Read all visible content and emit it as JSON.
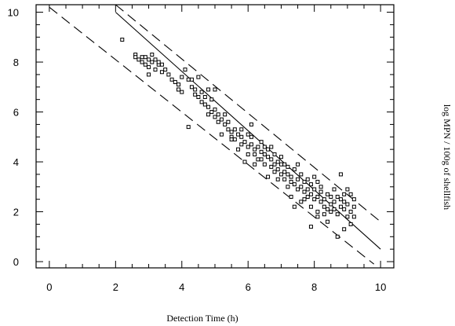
{
  "chart_data": {
    "type": "scatter",
    "title": "",
    "xlabel": "Detection Time (h)",
    "ylabel": "log MPN  /  100g of shellfish",
    "xlim": [
      -0.4,
      10.4
    ],
    "ylim": [
      -0.25,
      10.3
    ],
    "x_ticks": [
      0,
      2,
      4,
      6,
      8,
      10
    ],
    "y_ticks": [
      0,
      2,
      4,
      6,
      8,
      10
    ],
    "x_tick_labels": [
      "0",
      "2",
      "4",
      "6",
      "8",
      "10"
    ],
    "y_tick_labels": [
      "0",
      "2",
      "4",
      "6",
      "8",
      "10"
    ],
    "grid": false,
    "legend": "none",
    "lines": [
      {
        "style": "solid",
        "x": [
          2.0,
          10.0
        ],
        "y": [
          10.0,
          0.5
        ]
      },
      {
        "style": "dashed",
        "x": [
          2.0,
          10.0
        ],
        "y": [
          10.3,
          1.6
        ]
      },
      {
        "style": "dashed",
        "x": [
          0.0,
          9.8
        ],
        "y": [
          10.2,
          -0.1
        ]
      }
    ],
    "series": [
      {
        "points": [
          [
            2.2,
            8.9
          ],
          [
            2.6,
            8.3
          ],
          [
            2.6,
            8.2
          ],
          [
            2.7,
            8.1
          ],
          [
            2.8,
            8.0
          ],
          [
            2.9,
            8.2
          ],
          [
            2.9,
            7.9
          ],
          [
            3.0,
            7.8
          ],
          [
            3.0,
            8.1
          ],
          [
            3.1,
            8.3
          ],
          [
            3.1,
            8.0
          ],
          [
            3.2,
            7.7
          ],
          [
            3.2,
            8.1
          ],
          [
            3.3,
            7.9
          ],
          [
            3.4,
            7.6
          ],
          [
            3.5,
            7.7
          ],
          [
            3.6,
            7.5
          ],
          [
            3.7,
            7.3
          ],
          [
            3.8,
            7.2
          ],
          [
            3.9,
            7.1
          ],
          [
            3.9,
            6.9
          ],
          [
            4.0,
            7.4
          ],
          [
            4.0,
            6.8
          ],
          [
            4.1,
            7.7
          ],
          [
            4.2,
            7.3
          ],
          [
            4.3,
            7.3
          ],
          [
            4.3,
            7.0
          ],
          [
            4.4,
            6.9
          ],
          [
            4.4,
            6.7
          ],
          [
            4.5,
            6.6
          ],
          [
            4.6,
            6.4
          ],
          [
            4.7,
            6.3
          ],
          [
            4.7,
            6.6
          ],
          [
            4.8,
            6.9
          ],
          [
            4.8,
            6.2
          ],
          [
            4.9,
            6.0
          ],
          [
            4.9,
            6.5
          ],
          [
            5.0,
            5.8
          ],
          [
            5.0,
            6.1
          ],
          [
            5.1,
            5.9
          ],
          [
            5.1,
            5.6
          ],
          [
            5.2,
            5.7
          ],
          [
            5.3,
            5.5
          ],
          [
            5.3,
            5.9
          ],
          [
            5.4,
            5.3
          ],
          [
            5.4,
            5.6
          ],
          [
            5.5,
            5.2
          ],
          [
            5.5,
            5.0
          ],
          [
            5.6,
            5.3
          ],
          [
            5.6,
            4.9
          ],
          [
            5.7,
            5.1
          ],
          [
            5.8,
            5.0
          ],
          [
            5.8,
            4.7
          ],
          [
            5.9,
            4.8
          ],
          [
            6.0,
            5.1
          ],
          [
            6.0,
            4.6
          ],
          [
            6.1,
            4.7
          ],
          [
            6.1,
            5.0
          ],
          [
            6.2,
            4.5
          ],
          [
            6.2,
            4.3
          ],
          [
            6.3,
            4.6
          ],
          [
            6.4,
            4.4
          ],
          [
            6.4,
            4.1
          ],
          [
            6.5,
            4.3
          ],
          [
            6.5,
            3.9
          ],
          [
            6.6,
            4.2
          ],
          [
            6.6,
            4.5
          ],
          [
            6.7,
            3.8
          ],
          [
            6.7,
            4.1
          ],
          [
            6.8,
            3.9
          ],
          [
            6.8,
            3.6
          ],
          [
            6.9,
            4.0
          ],
          [
            6.9,
            3.7
          ],
          [
            7.0,
            3.5
          ],
          [
            7.0,
            3.9
          ],
          [
            7.1,
            3.6
          ],
          [
            7.1,
            3.3
          ],
          [
            7.2,
            3.5
          ],
          [
            7.2,
            3.8
          ],
          [
            7.3,
            3.2
          ],
          [
            7.3,
            3.4
          ],
          [
            7.4,
            3.1
          ],
          [
            7.4,
            3.7
          ],
          [
            7.5,
            3.3
          ],
          [
            7.5,
            2.9
          ],
          [
            7.6,
            3.0
          ],
          [
            7.6,
            3.5
          ],
          [
            7.7,
            3.2
          ],
          [
            7.7,
            2.8
          ],
          [
            7.8,
            2.9
          ],
          [
            7.8,
            2.6
          ],
          [
            7.9,
            3.1
          ],
          [
            7.9,
            2.7
          ],
          [
            8.0,
            2.5
          ],
          [
            8.0,
            2.9
          ],
          [
            8.1,
            2.6
          ],
          [
            8.1,
            3.2
          ],
          [
            8.2,
            2.4
          ],
          [
            8.2,
            2.8
          ],
          [
            8.3,
            2.5
          ],
          [
            8.3,
            2.2
          ],
          [
            8.4,
            2.7
          ],
          [
            8.5,
            2.3
          ],
          [
            8.5,
            2.0
          ],
          [
            8.6,
            2.4
          ],
          [
            8.6,
            2.1
          ],
          [
            8.7,
            2.6
          ],
          [
            8.7,
            1.9
          ],
          [
            8.8,
            2.2
          ],
          [
            8.8,
            2.5
          ],
          [
            8.9,
            2.1
          ],
          [
            8.9,
            2.7
          ],
          [
            9.0,
            1.8
          ],
          [
            9.0,
            2.3
          ],
          [
            9.1,
            2.0
          ],
          [
            9.1,
            1.5
          ],
          [
            9.2,
            2.2
          ],
          [
            9.2,
            2.5
          ],
          [
            8.8,
            3.5
          ],
          [
            8.7,
            1.0
          ],
          [
            7.9,
            1.4
          ],
          [
            8.1,
            1.8
          ],
          [
            8.9,
            1.3
          ],
          [
            4.2,
            5.4
          ],
          [
            5.5,
            4.9
          ],
          [
            6.1,
            5.5
          ],
          [
            3.9,
            6.9
          ],
          [
            4.5,
            7.4
          ],
          [
            5.0,
            6.9
          ],
          [
            6.7,
            4.6
          ],
          [
            7.4,
            2.2
          ],
          [
            7.6,
            2.4
          ],
          [
            8.4,
            1.6
          ],
          [
            8.0,
            3.4
          ],
          [
            7.2,
            3.0
          ],
          [
            6.9,
            3.3
          ],
          [
            6.3,
            4.1
          ],
          [
            5.8,
            5.3
          ],
          [
            5.2,
            5.1
          ],
          [
            4.6,
            6.8
          ],
          [
            6.4,
            4.8
          ],
          [
            7.0,
            4.2
          ],
          [
            7.5,
            3.9
          ],
          [
            8.2,
            3.0
          ],
          [
            8.6,
            2.9
          ],
          [
            9.1,
            2.7
          ],
          [
            9.2,
            1.8
          ],
          [
            7.3,
            2.6
          ],
          [
            6.6,
            3.4
          ],
          [
            6.0,
            4.3
          ],
          [
            5.7,
            4.5
          ],
          [
            7.8,
            3.3
          ],
          [
            8.3,
            1.9
          ],
          [
            8.5,
            2.6
          ],
          [
            3.0,
            7.5
          ],
          [
            3.3,
            8.0
          ],
          [
            2.8,
            8.2
          ],
          [
            3.4,
            7.9
          ],
          [
            4.8,
            5.9
          ],
          [
            5.9,
            4.0
          ],
          [
            6.8,
            4.3
          ],
          [
            7.1,
            3.9
          ],
          [
            7.7,
            2.5
          ],
          [
            8.4,
            2.1
          ],
          [
            8.9,
            2.4
          ],
          [
            9.0,
            2.9
          ],
          [
            6.2,
            3.9
          ],
          [
            6.5,
            4.6
          ],
          [
            7.9,
            2.2
          ],
          [
            8.1,
            2.0
          ]
        ]
      }
    ]
  }
}
